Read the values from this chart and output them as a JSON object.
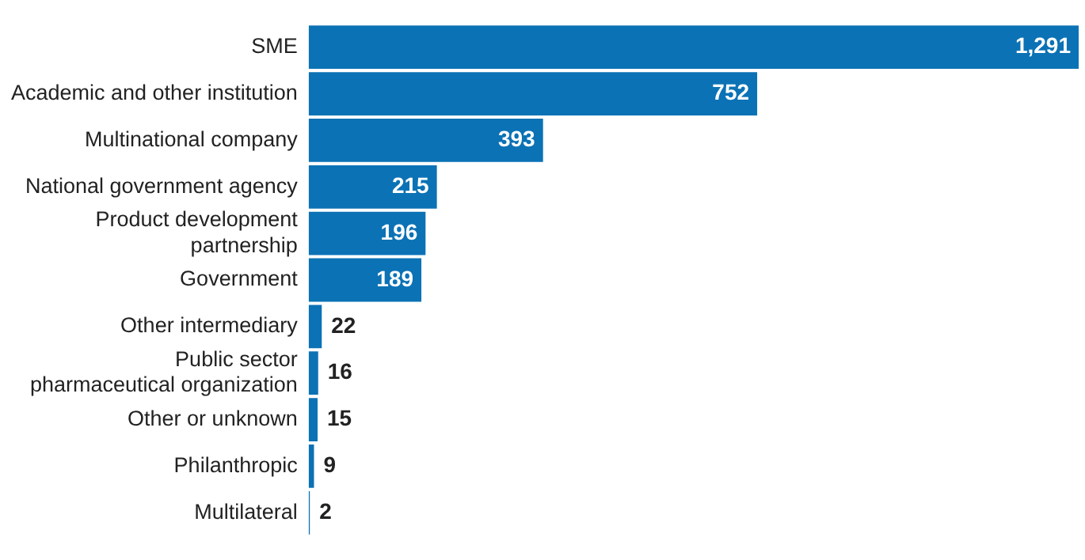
{
  "chart_data": {
    "type": "bar",
    "orientation": "horizontal",
    "categories": [
      "SME",
      "Academic and other institution",
      "Multinational company",
      "National government agency",
      "Product development partnership",
      "Government",
      "Other intermediary",
      "Public sector pharmaceutical organization",
      "Other or unknown",
      "Philanthropic",
      "Multilateral"
    ],
    "values": [
      1291,
      752,
      393,
      215,
      196,
      189,
      22,
      16,
      15,
      9,
      2
    ],
    "value_labels": [
      "1,291",
      "752",
      "393",
      "215",
      "196",
      "189",
      "22",
      "16",
      "15",
      "9",
      "2"
    ],
    "color": "#0b72b5",
    "grid": false,
    "legend": false
  }
}
